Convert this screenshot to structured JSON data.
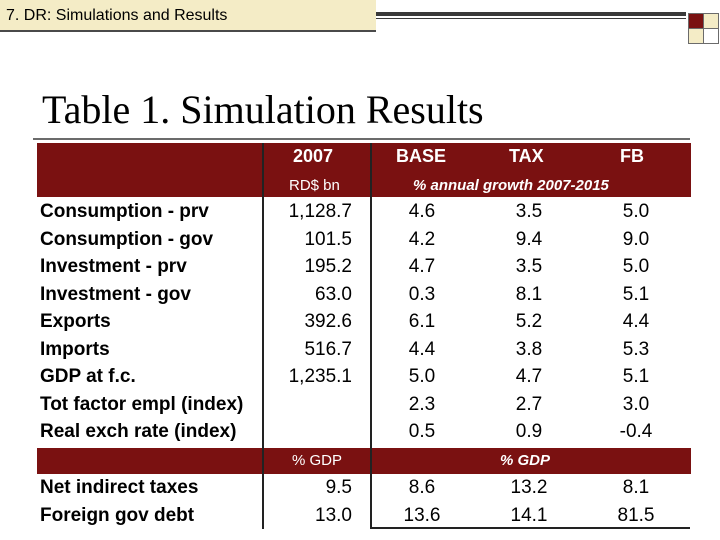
{
  "slide": {
    "section_tag": "7. DR: Simulations and Results",
    "title": "Table 1. Simulation Results"
  },
  "table": {
    "col_2007": "2007",
    "col_base": "BASE",
    "col_tax": "TAX",
    "col_fb": "FB",
    "unit_2007": "RD$ bn",
    "unit_growth": "% annual growth 2007-2015",
    "rows": [
      {
        "label": "Consumption - prv",
        "v2007": "1,128.7",
        "base": "4.6",
        "tax": "3.5",
        "fb": "5.0"
      },
      {
        "label": "Consumption - gov",
        "v2007": "101.5",
        "base": "4.2",
        "tax": "9.4",
        "fb": "9.0"
      },
      {
        "label": "Investment - prv",
        "v2007": "195.2",
        "base": "4.7",
        "tax": "3.5",
        "fb": "5.0"
      },
      {
        "label": "Investment - gov",
        "v2007": "63.0",
        "base": "0.3",
        "tax": "8.1",
        "fb": "5.1"
      },
      {
        "label": "Exports",
        "v2007": "392.6",
        "base": "6.1",
        "tax": "5.2",
        "fb": "4.4"
      },
      {
        "label": "Imports",
        "v2007": "516.7",
        "base": "4.4",
        "tax": "3.8",
        "fb": "5.3"
      },
      {
        "label": "GDP at f.c.",
        "v2007": "1,235.1",
        "base": "5.0",
        "tax": "4.7",
        "fb": "5.1"
      },
      {
        "label": "Tot factor empl (index)",
        "v2007": "",
        "base": "2.3",
        "tax": "2.7",
        "fb": "3.0"
      },
      {
        "label": "Real exch rate (index)",
        "v2007": "",
        "base": "0.5",
        "tax": "0.9",
        "fb": "-0.4"
      }
    ],
    "mid_2007": "% GDP",
    "mid_growth": "% GDP",
    "rows2": [
      {
        "label": "Net indirect taxes",
        "v2007": "9.5",
        "base": "8.6",
        "tax": "13.2",
        "fb": "8.1"
      },
      {
        "label": "Foreign gov debt",
        "v2007": "13.0",
        "base": "13.6",
        "tax": "14.1",
        "fb": "81.5"
      }
    ]
  },
  "colors": {
    "maroon": "#7a1111",
    "cream": "#f4ecc6"
  }
}
